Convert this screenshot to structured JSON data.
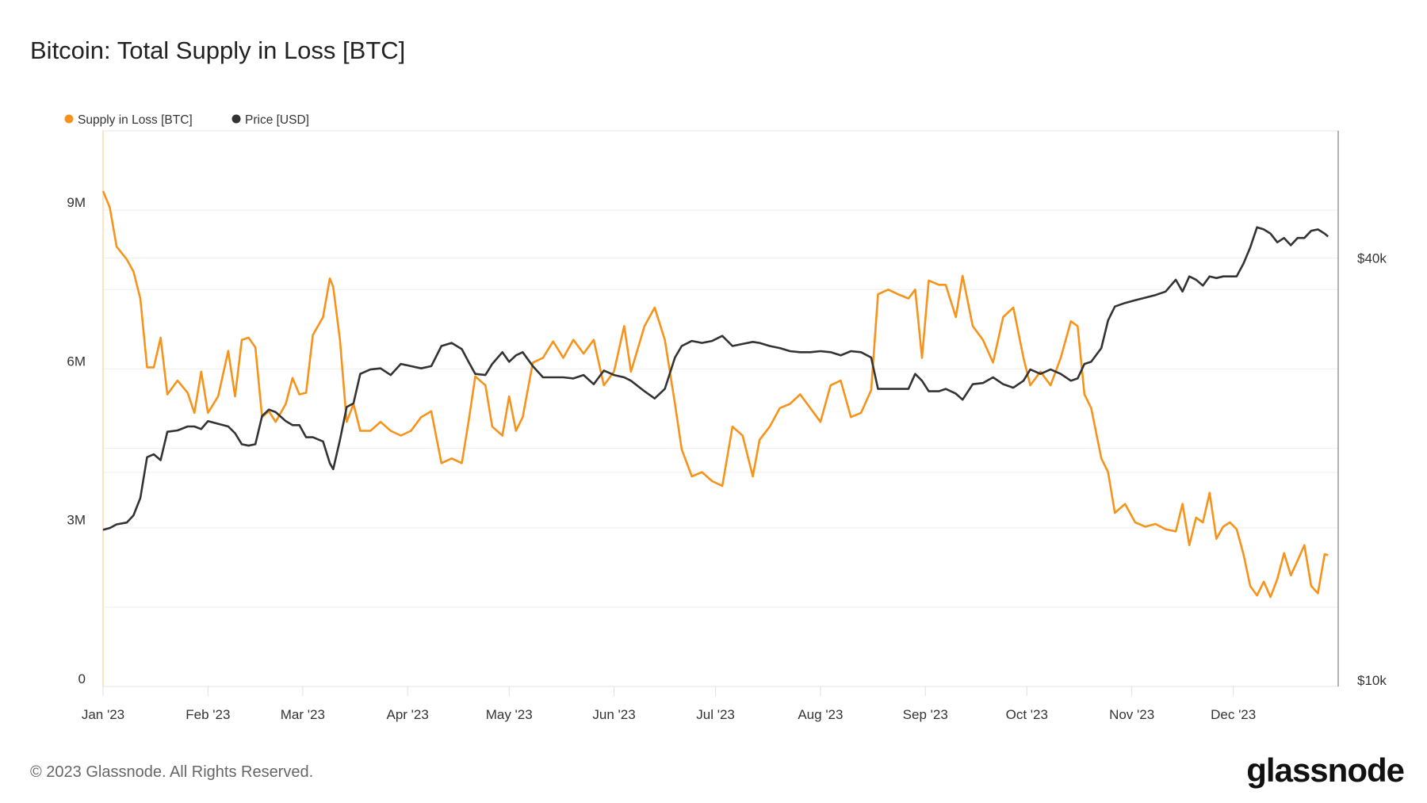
{
  "title": "Bitcoin: Total Supply in Loss [BTC]",
  "footer": "© 2023 Glassnode. All Rights Reserved.",
  "logo": "glassnode",
  "chart_data": {
    "type": "line",
    "title": "Bitcoin: Total Supply in Loss [BTC]",
    "legend_placement": "top-left",
    "grid": true,
    "x_range": [
      "2023-01-01",
      "2024-01-01"
    ],
    "x_ticks": [
      {
        "date": "2023-01-01",
        "label": "Jan '23"
      },
      {
        "date": "2023-02-01",
        "label": "Feb '23"
      },
      {
        "date": "2023-03-01",
        "label": "Mar '23"
      },
      {
        "date": "2023-04-01",
        "label": "Apr '23"
      },
      {
        "date": "2023-05-01",
        "label": "May '23"
      },
      {
        "date": "2023-06-01",
        "label": "Jun '23"
      },
      {
        "date": "2023-07-01",
        "label": "Jul '23"
      },
      {
        "date": "2023-08-01",
        "label": "Aug '23"
      },
      {
        "date": "2023-09-01",
        "label": "Sep '23"
      },
      {
        "date": "2023-10-01",
        "label": "Oct '23"
      },
      {
        "date": "2023-11-01",
        "label": "Nov '23"
      },
      {
        "date": "2023-12-01",
        "label": "Dec '23"
      }
    ],
    "y_left": {
      "scale": "linear",
      "range": [
        0,
        10500000
      ],
      "ticks": [
        {
          "value": 0,
          "label": "0"
        },
        {
          "value": 3000000,
          "label": "3M"
        },
        {
          "value": 6000000,
          "label": "6M"
        },
        {
          "value": 9000000,
          "label": "9M"
        }
      ],
      "grid_values": [
        1500000,
        3000000,
        4500000,
        6000000,
        7500000,
        9000000
      ]
    },
    "y_right": {
      "scale": "log",
      "range": [
        10000,
        60400
      ],
      "ticks": [
        {
          "value": 10000,
          "label": "$10k"
        },
        {
          "value": 40000,
          "label": "$40k"
        }
      ],
      "grid_values": [
        20000,
        40000
      ]
    },
    "dates": [
      "2023-01-01",
      "2023-01-03",
      "2023-01-05",
      "2023-01-08",
      "2023-01-10",
      "2023-01-12",
      "2023-01-14",
      "2023-01-16",
      "2023-01-18",
      "2023-01-20",
      "2023-01-23",
      "2023-01-26",
      "2023-01-28",
      "2023-01-30",
      "2023-02-01",
      "2023-02-04",
      "2023-02-07",
      "2023-02-09",
      "2023-02-11",
      "2023-02-13",
      "2023-02-15",
      "2023-02-17",
      "2023-02-19",
      "2023-02-21",
      "2023-02-24",
      "2023-02-26",
      "2023-02-28",
      "2023-03-02",
      "2023-03-04",
      "2023-03-07",
      "2023-03-09",
      "2023-03-10",
      "2023-03-12",
      "2023-03-14",
      "2023-03-16",
      "2023-03-18",
      "2023-03-21",
      "2023-03-24",
      "2023-03-27",
      "2023-03-30",
      "2023-04-02",
      "2023-04-05",
      "2023-04-08",
      "2023-04-11",
      "2023-04-14",
      "2023-04-17",
      "2023-04-19",
      "2023-04-21",
      "2023-04-24",
      "2023-04-26",
      "2023-04-29",
      "2023-05-01",
      "2023-05-03",
      "2023-05-05",
      "2023-05-08",
      "2023-05-11",
      "2023-05-14",
      "2023-05-17",
      "2023-05-20",
      "2023-05-23",
      "2023-05-26",
      "2023-05-29",
      "2023-06-01",
      "2023-06-04",
      "2023-06-06",
      "2023-06-10",
      "2023-06-13",
      "2023-06-16",
      "2023-06-19",
      "2023-06-21",
      "2023-06-24",
      "2023-06-27",
      "2023-06-30",
      "2023-07-03",
      "2023-07-06",
      "2023-07-09",
      "2023-07-12",
      "2023-07-14",
      "2023-07-17",
      "2023-07-20",
      "2023-07-23",
      "2023-07-26",
      "2023-07-29",
      "2023-08-01",
      "2023-08-04",
      "2023-08-07",
      "2023-08-10",
      "2023-08-13",
      "2023-08-16",
      "2023-08-18",
      "2023-08-21",
      "2023-08-24",
      "2023-08-27",
      "2023-08-29",
      "2023-08-31",
      "2023-09-02",
      "2023-09-05",
      "2023-09-07",
      "2023-09-10",
      "2023-09-12",
      "2023-09-15",
      "2023-09-18",
      "2023-09-21",
      "2023-09-24",
      "2023-09-27",
      "2023-09-30",
      "2023-10-02",
      "2023-10-05",
      "2023-10-08",
      "2023-10-11",
      "2023-10-14",
      "2023-10-16",
      "2023-10-18",
      "2023-10-20",
      "2023-10-23",
      "2023-10-25",
      "2023-10-27",
      "2023-10-30",
      "2023-11-02",
      "2023-11-05",
      "2023-11-08",
      "2023-11-11",
      "2023-11-14",
      "2023-11-16",
      "2023-11-18",
      "2023-11-20",
      "2023-11-22",
      "2023-11-24",
      "2023-11-26",
      "2023-11-28",
      "2023-11-30",
      "2023-12-02",
      "2023-12-04",
      "2023-12-06",
      "2023-12-08",
      "2023-12-10",
      "2023-12-12",
      "2023-12-14",
      "2023-12-16",
      "2023-12-18",
      "2023-12-20",
      "2023-12-22",
      "2023-12-24",
      "2023-12-26",
      "2023-12-28",
      "2023-12-29"
    ],
    "series": [
      {
        "name": "Supply in Loss [BTC]",
        "axis": "left",
        "color": "#f7931a",
        "values": [
          9360000,
          9050000,
          8310000,
          8070000,
          7840000,
          7330000,
          6030000,
          6030000,
          6590000,
          5520000,
          5780000,
          5550000,
          5170000,
          5950000,
          5170000,
          5480000,
          6340000,
          5480000,
          6550000,
          6590000,
          6410000,
          5090000,
          5200000,
          5000000,
          5340000,
          5830000,
          5520000,
          5550000,
          6640000,
          6980000,
          7710000,
          7550000,
          6550000,
          5000000,
          5340000,
          4830000,
          4830000,
          5000000,
          4830000,
          4740000,
          4830000,
          5090000,
          5200000,
          4220000,
          4310000,
          4220000,
          5000000,
          5860000,
          5690000,
          4910000,
          4740000,
          5480000,
          4830000,
          5090000,
          6120000,
          6210000,
          6520000,
          6210000,
          6550000,
          6290000,
          6550000,
          5690000,
          5950000,
          6810000,
          5950000,
          6810000,
          7160000,
          6550000,
          5340000,
          4480000,
          3970000,
          4050000,
          3880000,
          3790000,
          4910000,
          4740000,
          3970000,
          4660000,
          4910000,
          5260000,
          5340000,
          5520000,
          5260000,
          5000000,
          5690000,
          5780000,
          5090000,
          5170000,
          5600000,
          7410000,
          7500000,
          7410000,
          7330000,
          7500000,
          6210000,
          7670000,
          7590000,
          7590000,
          6980000,
          7760000,
          6810000,
          6550000,
          6120000,
          6980000,
          7160000,
          6210000,
          5690000,
          5950000,
          5690000,
          6210000,
          6900000,
          6810000,
          5520000,
          5260000,
          4310000,
          4050000,
          3280000,
          3450000,
          3100000,
          3020000,
          3070000,
          2970000,
          2930000,
          3450000,
          2670000,
          3190000,
          3100000,
          3660000,
          2790000,
          3020000,
          3100000,
          2970000,
          2500000,
          1900000,
          1720000,
          1980000,
          1690000,
          2030000,
          2520000,
          2100000,
          2380000,
          2670000,
          1900000,
          1760000,
          2500000,
          2480000
        ]
      },
      {
        "name": "Price [USD]",
        "axis": "right",
        "color": "#333333",
        "values": [
          16600,
          16700,
          16900,
          17000,
          17400,
          18400,
          21000,
          21200,
          20800,
          22800,
          22900,
          23200,
          23200,
          23000,
          23600,
          23400,
          23200,
          22700,
          21900,
          21800,
          21900,
          24000,
          24500,
          24300,
          23600,
          23300,
          23300,
          22400,
          22400,
          22100,
          20600,
          20200,
          22200,
          24700,
          25000,
          27500,
          27900,
          28000,
          27400,
          28400,
          28200,
          28000,
          28200,
          30100,
          30400,
          29800,
          28600,
          27500,
          27400,
          28400,
          29500,
          28600,
          29200,
          29500,
          28200,
          27200,
          27200,
          27200,
          27100,
          27400,
          26600,
          27800,
          27400,
          27200,
          26900,
          26000,
          25400,
          26200,
          29000,
          30100,
          30600,
          30400,
          30600,
          31100,
          30100,
          30300,
          30500,
          30400,
          30100,
          29900,
          29600,
          29500,
          29500,
          29600,
          29500,
          29200,
          29600,
          29500,
          29000,
          26200,
          26200,
          26200,
          26200,
          27500,
          26900,
          26000,
          26000,
          26200,
          25800,
          25300,
          26600,
          26700,
          27200,
          26600,
          26300,
          26900,
          27900,
          27500,
          27900,
          27500,
          26900,
          27100,
          28400,
          28600,
          29900,
          32700,
          34200,
          34600,
          34900,
          35200,
          35500,
          35900,
          37300,
          35900,
          37700,
          37300,
          36600,
          37700,
          37500,
          37700,
          37700,
          37700,
          39300,
          41400,
          44200,
          43900,
          43300,
          42100,
          42700,
          41700,
          42700,
          42700,
          43700,
          43900,
          43300,
          42900
        ]
      }
    ]
  }
}
